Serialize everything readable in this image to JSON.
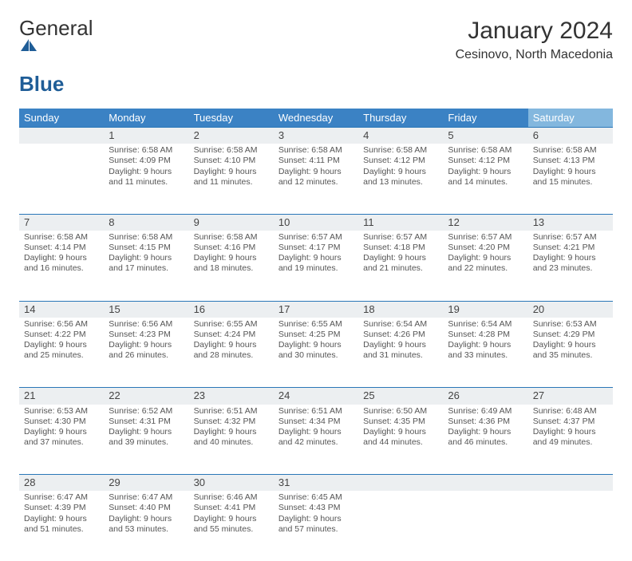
{
  "brand": {
    "word1": "General",
    "word2": "Blue"
  },
  "header": {
    "month_year": "January 2024",
    "location": "Cesinovo, North Macedonia"
  },
  "weekdays": [
    "Sunday",
    "Monday",
    "Tuesday",
    "Wednesday",
    "Thursday",
    "Friday",
    "Saturday"
  ],
  "colors": {
    "header_bar": "#3b82c4",
    "header_bar_saturday": "#83b7de",
    "date_row_bg": "#eceff1",
    "date_row_border": "#2a77b8",
    "logo_general": "#333333",
    "logo_blue": "#1f5d97"
  },
  "typography": {
    "month_title_fontsize": 30,
    "location_fontsize": 16,
    "weekday_header_fontsize": 13,
    "daynum_fontsize": 13,
    "body_fontsize": 10.5
  },
  "weeks": [
    [
      null,
      {
        "n": "1",
        "sr": "6:58 AM",
        "ss": "4:09 PM",
        "dl": "9 hours and 11 minutes."
      },
      {
        "n": "2",
        "sr": "6:58 AM",
        "ss": "4:10 PM",
        "dl": "9 hours and 11 minutes."
      },
      {
        "n": "3",
        "sr": "6:58 AM",
        "ss": "4:11 PM",
        "dl": "9 hours and 12 minutes."
      },
      {
        "n": "4",
        "sr": "6:58 AM",
        "ss": "4:12 PM",
        "dl": "9 hours and 13 minutes."
      },
      {
        "n": "5",
        "sr": "6:58 AM",
        "ss": "4:12 PM",
        "dl": "9 hours and 14 minutes."
      },
      {
        "n": "6",
        "sr": "6:58 AM",
        "ss": "4:13 PM",
        "dl": "9 hours and 15 minutes."
      }
    ],
    [
      {
        "n": "7",
        "sr": "6:58 AM",
        "ss": "4:14 PM",
        "dl": "9 hours and 16 minutes."
      },
      {
        "n": "8",
        "sr": "6:58 AM",
        "ss": "4:15 PM",
        "dl": "9 hours and 17 minutes."
      },
      {
        "n": "9",
        "sr": "6:58 AM",
        "ss": "4:16 PM",
        "dl": "9 hours and 18 minutes."
      },
      {
        "n": "10",
        "sr": "6:57 AM",
        "ss": "4:17 PM",
        "dl": "9 hours and 19 minutes."
      },
      {
        "n": "11",
        "sr": "6:57 AM",
        "ss": "4:18 PM",
        "dl": "9 hours and 21 minutes."
      },
      {
        "n": "12",
        "sr": "6:57 AM",
        "ss": "4:20 PM",
        "dl": "9 hours and 22 minutes."
      },
      {
        "n": "13",
        "sr": "6:57 AM",
        "ss": "4:21 PM",
        "dl": "9 hours and 23 minutes."
      }
    ],
    [
      {
        "n": "14",
        "sr": "6:56 AM",
        "ss": "4:22 PM",
        "dl": "9 hours and 25 minutes."
      },
      {
        "n": "15",
        "sr": "6:56 AM",
        "ss": "4:23 PM",
        "dl": "9 hours and 26 minutes."
      },
      {
        "n": "16",
        "sr": "6:55 AM",
        "ss": "4:24 PM",
        "dl": "9 hours and 28 minutes."
      },
      {
        "n": "17",
        "sr": "6:55 AM",
        "ss": "4:25 PM",
        "dl": "9 hours and 30 minutes."
      },
      {
        "n": "18",
        "sr": "6:54 AM",
        "ss": "4:26 PM",
        "dl": "9 hours and 31 minutes."
      },
      {
        "n": "19",
        "sr": "6:54 AM",
        "ss": "4:28 PM",
        "dl": "9 hours and 33 minutes."
      },
      {
        "n": "20",
        "sr": "6:53 AM",
        "ss": "4:29 PM",
        "dl": "9 hours and 35 minutes."
      }
    ],
    [
      {
        "n": "21",
        "sr": "6:53 AM",
        "ss": "4:30 PM",
        "dl": "9 hours and 37 minutes."
      },
      {
        "n": "22",
        "sr": "6:52 AM",
        "ss": "4:31 PM",
        "dl": "9 hours and 39 minutes."
      },
      {
        "n": "23",
        "sr": "6:51 AM",
        "ss": "4:32 PM",
        "dl": "9 hours and 40 minutes."
      },
      {
        "n": "24",
        "sr": "6:51 AM",
        "ss": "4:34 PM",
        "dl": "9 hours and 42 minutes."
      },
      {
        "n": "25",
        "sr": "6:50 AM",
        "ss": "4:35 PM",
        "dl": "9 hours and 44 minutes."
      },
      {
        "n": "26",
        "sr": "6:49 AM",
        "ss": "4:36 PM",
        "dl": "9 hours and 46 minutes."
      },
      {
        "n": "27",
        "sr": "6:48 AM",
        "ss": "4:37 PM",
        "dl": "9 hours and 49 minutes."
      }
    ],
    [
      {
        "n": "28",
        "sr": "6:47 AM",
        "ss": "4:39 PM",
        "dl": "9 hours and 51 minutes."
      },
      {
        "n": "29",
        "sr": "6:47 AM",
        "ss": "4:40 PM",
        "dl": "9 hours and 53 minutes."
      },
      {
        "n": "30",
        "sr": "6:46 AM",
        "ss": "4:41 PM",
        "dl": "9 hours and 55 minutes."
      },
      {
        "n": "31",
        "sr": "6:45 AM",
        "ss": "4:43 PM",
        "dl": "9 hours and 57 minutes."
      },
      null,
      null,
      null
    ]
  ],
  "labels": {
    "sunrise": "Sunrise:",
    "sunset": "Sunset:",
    "daylight": "Daylight:"
  }
}
